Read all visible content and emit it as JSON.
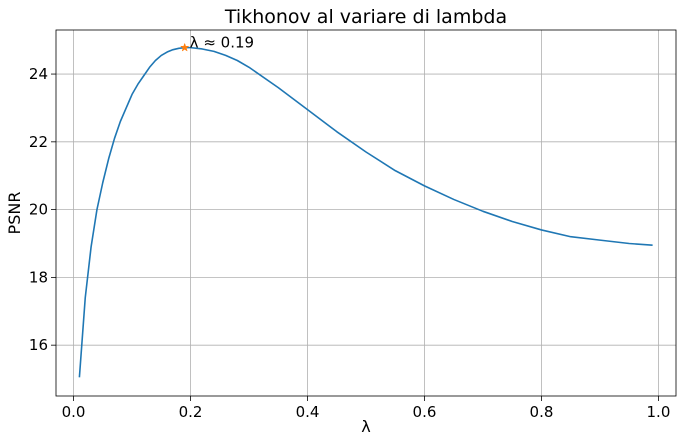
{
  "chart_data": {
    "type": "line",
    "title": "Tikhonov al variare di lambda",
    "xlabel": "λ",
    "ylabel": "PSNR",
    "xlim": [
      -0.03,
      1.03
    ],
    "ylim": [
      14.5,
      25.3
    ],
    "x_ticks": [
      {
        "value": 0.0,
        "label": "0.0"
      },
      {
        "value": 0.2,
        "label": "0.2"
      },
      {
        "value": 0.4,
        "label": "0.4"
      },
      {
        "value": 0.6,
        "label": "0.6"
      },
      {
        "value": 0.8,
        "label": "0.8"
      },
      {
        "value": 1.0,
        "label": "1.0"
      }
    ],
    "y_ticks": [
      {
        "value": 16,
        "label": "16"
      },
      {
        "value": 18,
        "label": "18"
      },
      {
        "value": 20,
        "label": "20"
      },
      {
        "value": 22,
        "label": "22"
      },
      {
        "value": 24,
        "label": "24"
      }
    ],
    "grid": true,
    "series": [
      {
        "color": "#1f77b4",
        "x": [
          0.01,
          0.02,
          0.03,
          0.04,
          0.05,
          0.06,
          0.07,
          0.08,
          0.09,
          0.1,
          0.11,
          0.12,
          0.13,
          0.14,
          0.15,
          0.16,
          0.17,
          0.18,
          0.19,
          0.2,
          0.22,
          0.24,
          0.26,
          0.28,
          0.3,
          0.35,
          0.4,
          0.45,
          0.5,
          0.55,
          0.6,
          0.65,
          0.7,
          0.75,
          0.8,
          0.85,
          0.9,
          0.95,
          0.99
        ],
        "y": [
          15.05,
          17.4,
          18.9,
          20.0,
          20.8,
          21.5,
          22.1,
          22.6,
          23.0,
          23.4,
          23.7,
          23.95,
          24.2,
          24.4,
          24.55,
          24.65,
          24.72,
          24.76,
          24.78,
          24.78,
          24.74,
          24.67,
          24.55,
          24.4,
          24.2,
          23.6,
          22.95,
          22.3,
          21.7,
          21.15,
          20.7,
          20.3,
          19.95,
          19.65,
          19.4,
          19.2,
          19.1,
          19.0,
          18.95
        ]
      }
    ],
    "annotations": [
      {
        "text": "λ ≈ 0.19",
        "x": 0.19,
        "y": 24.78,
        "marker": "star",
        "color": "#ff7f0e"
      }
    ]
  }
}
